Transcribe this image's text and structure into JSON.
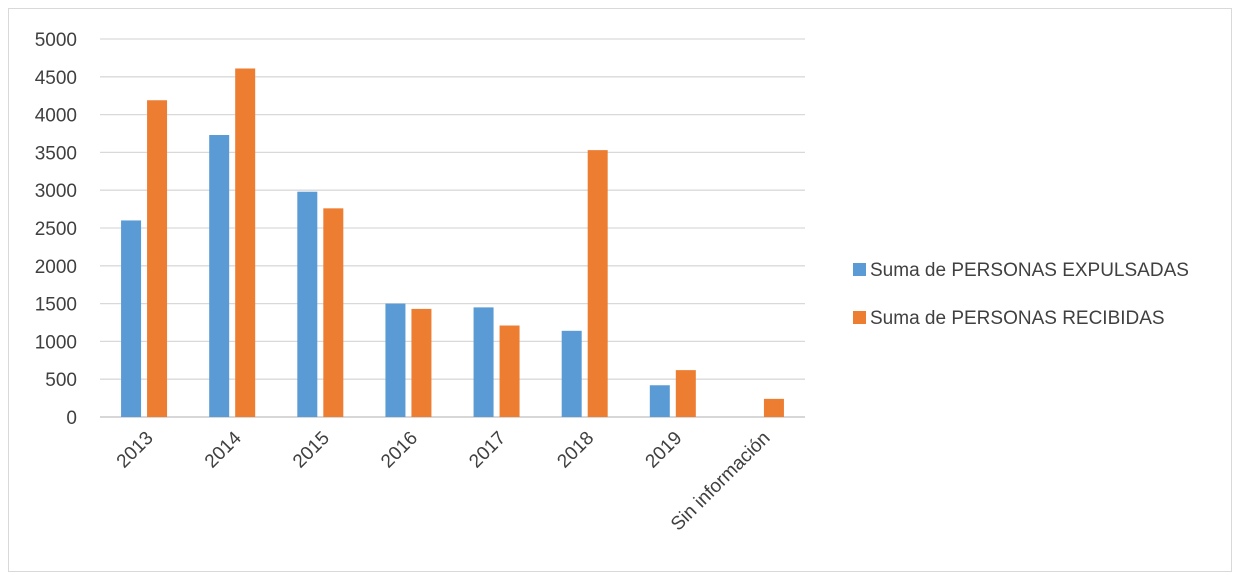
{
  "chart_data": {
    "type": "bar",
    "categories": [
      "2013",
      "2014",
      "2015",
      "2016",
      "2017",
      "2018",
      "2019",
      "Sin información"
    ],
    "series": [
      {
        "name": "Suma de PERSONAS EXPULSADAS",
        "color": "#5b9bd5",
        "values": [
          2600,
          3730,
          2980,
          1500,
          1450,
          1140,
          420,
          0
        ]
      },
      {
        "name": "Suma de PERSONAS RECIBIDAS",
        "color": "#ed7d31",
        "values": [
          4190,
          4610,
          2760,
          1430,
          1210,
          3530,
          620,
          240
        ]
      }
    ],
    "yticks": [
      "0",
      "500",
      "1000",
      "1500",
      "2000",
      "2500",
      "3000",
      "3500",
      "4000",
      "4500",
      "5000"
    ],
    "ylim": [
      0,
      5000
    ],
    "grid": true,
    "legend_position": "right"
  }
}
